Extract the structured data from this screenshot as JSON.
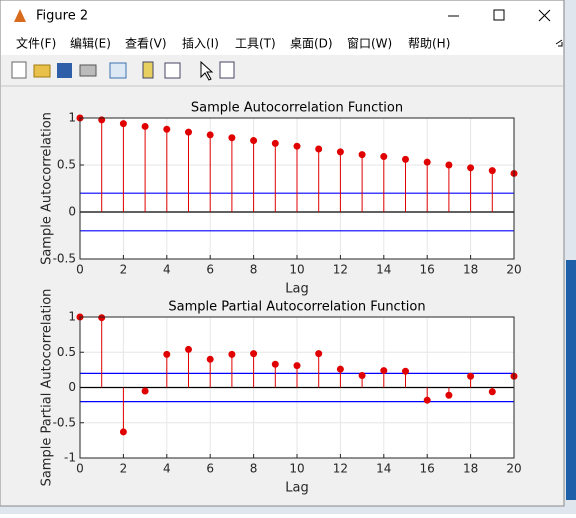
{
  "window": {
    "title": "Figure 2",
    "menu": [
      "文件(F)",
      "编辑(E)",
      "查看(V)",
      "插入(I)",
      "工具(T)",
      "桌面(D)",
      "窗口(W)",
      "帮助(H)"
    ]
  },
  "chart_data": [
    {
      "type": "stem",
      "title": "Sample Autocorrelation Function",
      "xlabel": "Lag",
      "ylabel": "Sample Autocorrelation",
      "x": [
        0,
        1,
        2,
        3,
        4,
        5,
        6,
        7,
        8,
        9,
        10,
        11,
        12,
        13,
        14,
        15,
        16,
        17,
        18,
        19,
        20
      ],
      "values": [
        1,
        0.98,
        0.94,
        0.91,
        0.88,
        0.85,
        0.82,
        0.79,
        0.76,
        0.73,
        0.7,
        0.67,
        0.64,
        0.61,
        0.59,
        0.56,
        0.53,
        0.5,
        0.47,
        0.44,
        0.41
      ],
      "color": "#e00000",
      "bounds": [
        0.2,
        -0.2
      ],
      "bounds_color": "#0000ff",
      "xlim": [
        0,
        20
      ],
      "xticks": [
        0,
        2,
        4,
        6,
        8,
        10,
        12,
        14,
        16,
        18,
        20
      ],
      "ylim": [
        -0.5,
        1
      ],
      "yticks": [
        -0.5,
        0,
        0.5,
        1
      ],
      "grid": true
    },
    {
      "type": "stem",
      "title": "Sample Partial Autocorrelation Function",
      "xlabel": "Lag",
      "ylabel": "Sample Partial Autocorrelation",
      "x": [
        0,
        1,
        2,
        3,
        4,
        5,
        6,
        7,
        8,
        9,
        10,
        11,
        12,
        13,
        14,
        15,
        16,
        17,
        18,
        19,
        20
      ],
      "values": [
        1,
        0.99,
        -0.63,
        -0.05,
        0.47,
        0.54,
        0.4,
        0.47,
        0.48,
        0.33,
        0.31,
        0.48,
        0.26,
        0.17,
        0.24,
        0.23,
        -0.18,
        -0.11,
        0.16,
        -0.06,
        0.16
      ],
      "color": "#e00000",
      "bounds": [
        0.2,
        -0.2
      ],
      "bounds_color": "#0000ff",
      "xlim": [
        0,
        20
      ],
      "xticks": [
        0,
        2,
        4,
        6,
        8,
        10,
        12,
        14,
        16,
        18,
        20
      ],
      "ylim": [
        -1,
        1
      ],
      "yticks": [
        -1,
        -0.5,
        0,
        0.5,
        1
      ],
      "grid": true
    }
  ]
}
